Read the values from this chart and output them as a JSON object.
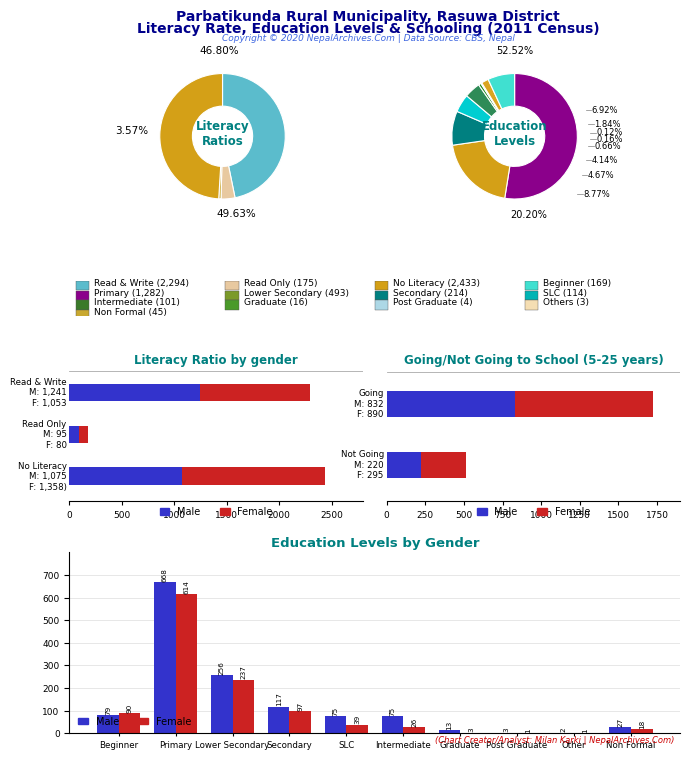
{
  "title_line1": "Parbatikunda Rural Municipality, Rasuwa District",
  "title_line2": "Literacy Rate, Education Levels & Schooling (2011 Census)",
  "copyright": "Copyright © 2020 NepalArchives.Com | Data Source: CBS, Nepal",
  "analyst": "(Chart Creator/Analyst: Milan Karki | NepalArchives.Com)",
  "literacy_pie": {
    "sizes": [
      46.8,
      3.57,
      0.97,
      49.63,
      0.03
    ],
    "colors": [
      "#5bbccc",
      "#e8c9a0",
      "#c8a830",
      "#d4a017",
      "#5bbccc"
    ],
    "center_label": "Literacy\nRatios",
    "pct_top": "46.80%",
    "pct_left": "3.57%",
    "pct_bot": "49.63%"
  },
  "edu_pie": {
    "sizes": [
      52.52,
      20.2,
      8.77,
      4.67,
      4.14,
      0.66,
      0.16,
      0.12,
      1.84,
      6.92
    ],
    "colors": [
      "#8b008b",
      "#d4a017",
      "#008080",
      "#00ced1",
      "#2e8b57",
      "#228b22",
      "#90ee90",
      "#add8e6",
      "#daa520",
      "#40e0d0"
    ],
    "pcts": [
      "52.52%",
      "20.20%",
      "8.77%",
      "4.67%",
      "4.14%",
      "0.66%",
      "0.16%",
      "0.12%",
      "1.84%",
      "6.92%"
    ],
    "center_label": "Education\nLevels"
  },
  "legend": {
    "row1": [
      {
        "color": "#5bbccc",
        "label": "Read & Write (2,294)"
      },
      {
        "color": "#e8c9a0",
        "label": "Read Only (175)"
      },
      {
        "color": "#d4a017",
        "label": "No Literacy (2,433)"
      },
      {
        "color": "#40e0d0",
        "label": "Beginner (169)"
      }
    ],
    "row2": [
      {
        "color": "#8b008b",
        "label": "Primary (1,282)"
      },
      {
        "color": "#7b9a2a",
        "label": "Lower Secondary (493)"
      },
      {
        "color": "#008080",
        "label": "Secondary (214)"
      },
      {
        "color": "#00b4b4",
        "label": "SLC (114)"
      }
    ],
    "row3": [
      {
        "color": "#3a7a2a",
        "label": "Intermediate (101)"
      },
      {
        "color": "#4a9a2a",
        "label": "Graduate (16)"
      },
      {
        "color": "#add8e6",
        "label": "Post Graduate (4)"
      },
      {
        "color": "#f5deb3",
        "label": "Others (3)"
      }
    ],
    "row4": [
      {
        "color": "#c8a830",
        "label": "Non Formal (45)"
      }
    ]
  },
  "literacy_bar": {
    "title": "Literacy Ratio by gender",
    "cats": [
      "Read & Write\nM: 1,241\nF: 1,053",
      "Read Only\nM: 95\nF: 80",
      "No Literacy\nM: 1,075\nF: 1,358)"
    ],
    "male": [
      1241,
      95,
      1075
    ],
    "female": [
      1053,
      80,
      1358
    ],
    "male_color": "#3333cc",
    "female_color": "#cc2222"
  },
  "school_bar": {
    "title": "Going/Not Going to School (5-25 years)",
    "cats": [
      "Going\nM: 832\nF: 890",
      "Not Going\nM: 220\nF: 295"
    ],
    "male": [
      832,
      220
    ],
    "female": [
      890,
      295
    ],
    "male_color": "#3333cc",
    "female_color": "#cc2222"
  },
  "edu_bar": {
    "title": "Education Levels by Gender",
    "cats": [
      "Beginner",
      "Primary",
      "Lower Secondary",
      "Secondary",
      "SLC",
      "Intermediate",
      "Graduate",
      "Post Graduate",
      "Other",
      "Non Formal"
    ],
    "male": [
      79,
      668,
      256,
      117,
      75,
      75,
      13,
      3,
      2,
      27
    ],
    "female": [
      90,
      614,
      237,
      97,
      39,
      26,
      3,
      1,
      1,
      18
    ],
    "male_color": "#3333cc",
    "female_color": "#cc2222"
  },
  "bg_color": "#ffffff",
  "title_color": "#00008b",
  "copyright_color": "#4169e1",
  "bar_title_color": "#008080",
  "analyst_color": "#cc0000"
}
